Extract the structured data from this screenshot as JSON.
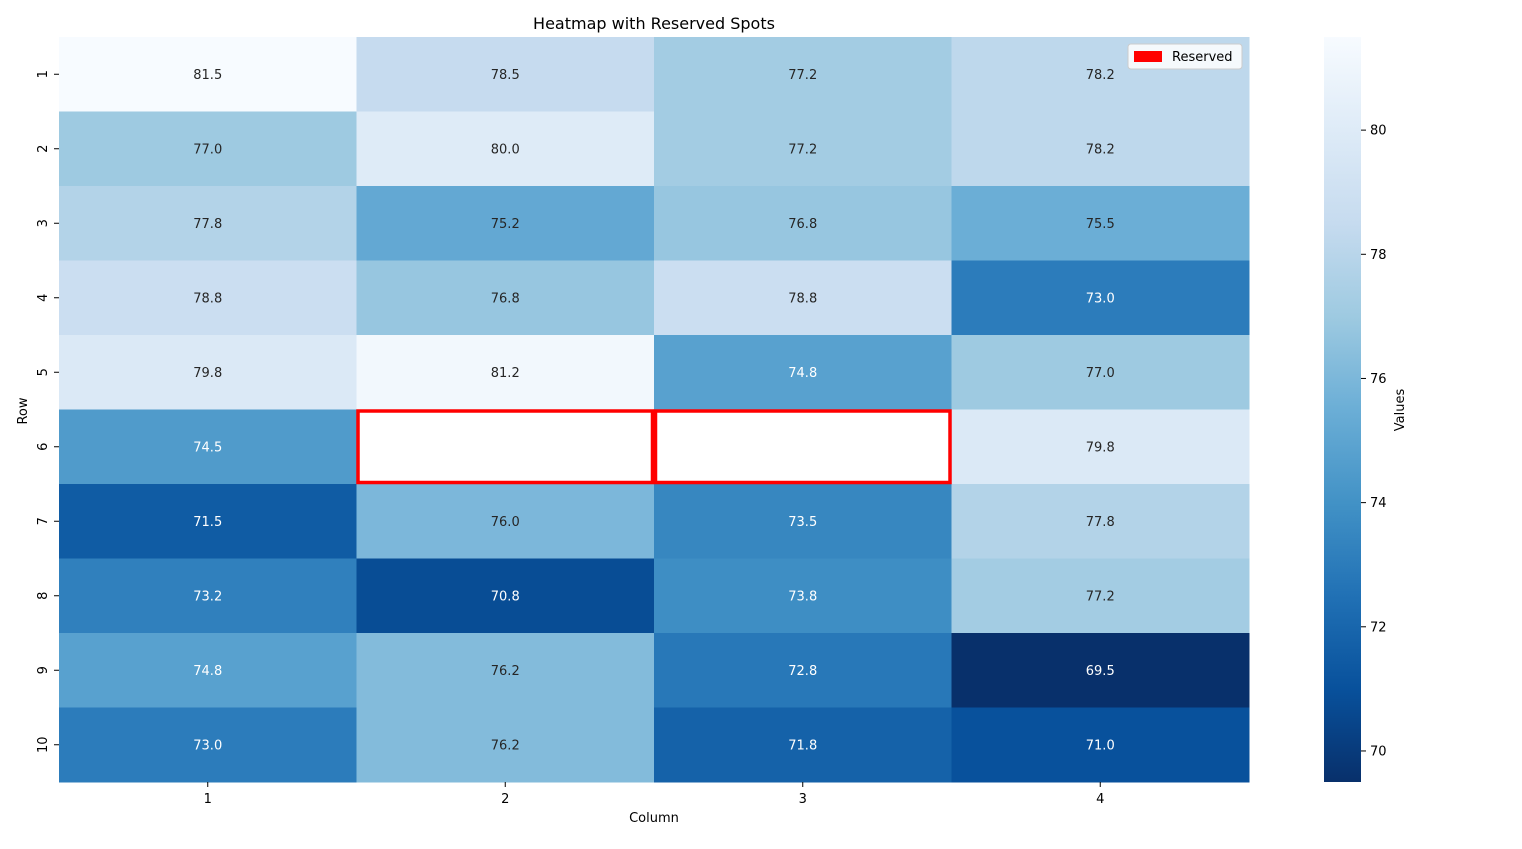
{
  "chart_data": {
    "type": "heatmap",
    "title": "Heatmap with Reserved Spots",
    "xlabel": "Column",
    "ylabel": "Row",
    "x_categories": [
      "1",
      "2",
      "3",
      "4"
    ],
    "y_categories": [
      "1",
      "2",
      "3",
      "4",
      "5",
      "6",
      "7",
      "8",
      "9",
      "10"
    ],
    "values": [
      [
        81.5,
        78.5,
        77.2,
        78.2
      ],
      [
        77.0,
        80.0,
        77.2,
        78.2
      ],
      [
        77.8,
        75.2,
        76.8,
        75.5
      ],
      [
        78.8,
        76.8,
        78.8,
        73.0
      ],
      [
        79.8,
        81.2,
        74.8,
        77.0
      ],
      [
        74.5,
        null,
        null,
        79.8
      ],
      [
        71.5,
        76.0,
        73.5,
        77.8
      ],
      [
        73.2,
        70.8,
        73.8,
        77.2
      ],
      [
        74.8,
        76.2,
        72.8,
        69.5
      ],
      [
        73.0,
        76.2,
        71.8,
        71.0
      ]
    ],
    "reserved_cells": [
      [
        6,
        2
      ],
      [
        6,
        3
      ]
    ],
    "reserved_color": "#ff0000",
    "legend": {
      "label": "Reserved",
      "placement": "top-right"
    },
    "colorbar": {
      "label": "Values",
      "colormap": "Blues_r",
      "range": [
        69.5,
        81.5
      ],
      "ticks": [
        "70",
        "72",
        "74",
        "76",
        "78",
        "80"
      ]
    }
  }
}
